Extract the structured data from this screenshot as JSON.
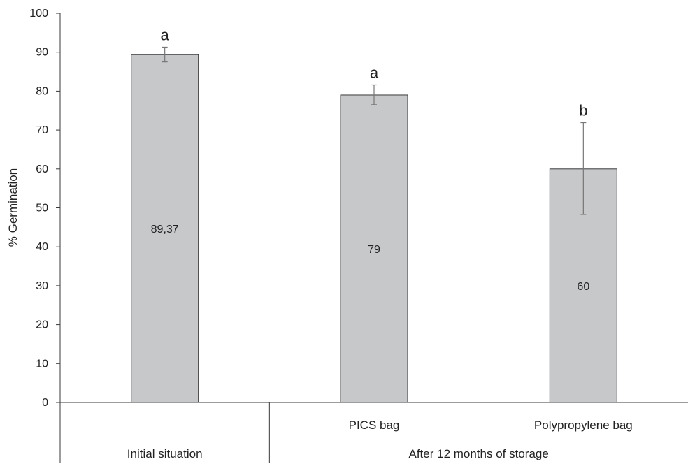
{
  "chart_data": {
    "type": "bar",
    "ylabel": "% Germination",
    "ylim": [
      0,
      100
    ],
    "yticks": [
      0,
      10,
      20,
      30,
      40,
      50,
      60,
      70,
      80,
      90,
      100
    ],
    "grid": false,
    "categories": [
      "",
      "PICS bag",
      "Polypropylene bag"
    ],
    "groups": [
      {
        "label": "Initial situation",
        "categories": [
          ""
        ]
      },
      {
        "label": "After 12 months of storage",
        "categories": [
          "PICS bag",
          "Polypropylene bag"
        ]
      }
    ],
    "values": [
      89.37,
      79,
      60
    ],
    "value_labels": [
      "89,37",
      "79",
      "60"
    ],
    "error_low": [
      87.5,
      76.5,
      48.3
    ],
    "error_high": [
      91.3,
      81.6,
      71.9
    ],
    "significance": [
      "a",
      "a",
      "b"
    ],
    "colors": {
      "bar_fill": "#c7c8ca",
      "bar_stroke": "#3a3a3a",
      "axis": "#3a3a3a",
      "error_bar": "#777777"
    }
  }
}
